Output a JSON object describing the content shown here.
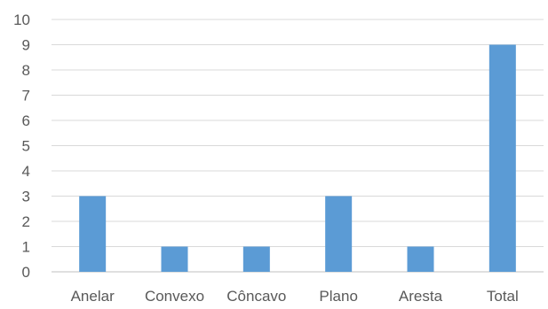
{
  "chart_data": {
    "type": "bar",
    "title": "",
    "xlabel": "",
    "ylabel": "",
    "categories": [
      "Anelar",
      "Convexo",
      "Côncavo",
      "Plano",
      "Aresta",
      "Total"
    ],
    "values": [
      3,
      1,
      1,
      3,
      1,
      9
    ],
    "ylim": [
      0,
      10
    ],
    "yticks": [
      "0",
      "1",
      "2",
      "3",
      "4",
      "5",
      "6",
      "7",
      "8",
      "9",
      "10"
    ],
    "grid": true,
    "legend": "none",
    "bar_color": "#5B9BD5"
  }
}
